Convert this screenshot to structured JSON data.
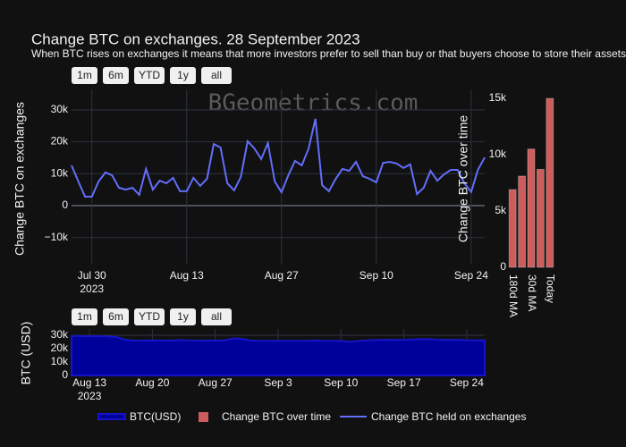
{
  "title": "Change BTC on exchanges. 28 September 2023",
  "subtitle": "When BTC rises on exchanges it means that more investors prefer to sell than buy or that buyers choose to store their assets o",
  "watermark": "BGeometrics.com",
  "range_buttons": [
    "1m",
    "6m",
    "YTD",
    "1y",
    "all"
  ],
  "chart_data": [
    {
      "type": "line",
      "y_label": "Change BTC on exchanges",
      "grid": true,
      "x": [
        "2023-07-27",
        "2023-07-28",
        "2023-07-29",
        "2023-07-30",
        "2023-07-31",
        "2023-08-01",
        "2023-08-02",
        "2023-08-03",
        "2023-08-04",
        "2023-08-05",
        "2023-08-06",
        "2023-08-07",
        "2023-08-08",
        "2023-08-09",
        "2023-08-10",
        "2023-08-11",
        "2023-08-12",
        "2023-08-13",
        "2023-08-14",
        "2023-08-15",
        "2023-08-16",
        "2023-08-17",
        "2023-08-18",
        "2023-08-19",
        "2023-08-20",
        "2023-08-21",
        "2023-08-22",
        "2023-08-23",
        "2023-08-24",
        "2023-08-25",
        "2023-08-26",
        "2023-08-27",
        "2023-08-28",
        "2023-08-29",
        "2023-08-30",
        "2023-08-31",
        "2023-09-01",
        "2023-09-02",
        "2023-09-03",
        "2023-09-04",
        "2023-09-05",
        "2023-09-06",
        "2023-09-07",
        "2023-09-08",
        "2023-09-09",
        "2023-09-10",
        "2023-09-11",
        "2023-09-12",
        "2023-09-13",
        "2023-09-14",
        "2023-09-15",
        "2023-09-16",
        "2023-09-17",
        "2023-09-18",
        "2023-09-19",
        "2023-09-20",
        "2023-09-21",
        "2023-09-22",
        "2023-09-23",
        "2023-09-24",
        "2023-09-25",
        "2023-09-26"
      ],
      "series": [
        {
          "name": "Change BTC held on exchanges",
          "color": "#636efa",
          "values": [
            12600,
            7600,
            2800,
            2800,
            7600,
            10400,
            9500,
            5600,
            5000,
            5600,
            3400,
            11500,
            5000,
            7800,
            7000,
            8700,
            4500,
            4500,
            8700,
            6200,
            8400,
            19300,
            18200,
            7000,
            4800,
            9000,
            20200,
            17900,
            14600,
            19600,
            7600,
            4200,
            9500,
            14000,
            12600,
            17900,
            27200,
            6400,
            4500,
            8400,
            11500,
            10900,
            13700,
            9200,
            8400,
            7300,
            13400,
            13700,
            13200,
            11800,
            12900,
            3600,
            5600,
            10900,
            7800,
            9800,
            11200,
            11200,
            7000,
            4300,
            11200,
            15100
          ]
        }
      ],
      "xlim": [
        "2023-07-27",
        "2023-09-26"
      ],
      "xticks": [
        {
          "value": "2023-07-30",
          "label": "Jul 30"
        },
        {
          "value": "2023-08-13",
          "label": "Aug 13"
        },
        {
          "value": "2023-08-27",
          "label": "Aug 27"
        },
        {
          "value": "2023-09-10",
          "label": "Sep 10"
        },
        {
          "value": "2023-09-24",
          "label": "Sep 24"
        }
      ],
      "x_year_label": "2023",
      "ylim": [
        -18200,
        36400
      ],
      "yticks": [
        {
          "value": -10000,
          "label": "−10k"
        },
        0,
        {
          "value": 10000,
          "label": "10k"
        },
        {
          "value": 20000,
          "label": "20k"
        },
        {
          "value": 30000,
          "label": "30k"
        }
      ]
    },
    {
      "type": "bar",
      "y_label": "Change BTC over time",
      "color": "#cd5c5c",
      "series": [
        {
          "name": "Change BTC over time",
          "color": "#cd5c5c",
          "values": [
            6900,
            8100,
            10500,
            8700,
            15000
          ]
        }
      ],
      "categories": [
        "180d MA",
        null,
        "30d MA",
        null,
        "Today"
      ],
      "ylim": [
        0,
        15800
      ],
      "yticks": [
        0,
        {
          "value": 5000,
          "label": "5k"
        },
        {
          "value": 10000,
          "label": "10k"
        },
        {
          "value": 15000,
          "label": "15k"
        }
      ]
    },
    {
      "type": "area",
      "y_label": "BTC (USD)",
      "grid": true,
      "x": [
        "2023-08-11",
        "2023-08-12",
        "2023-08-13",
        "2023-08-14",
        "2023-08-15",
        "2023-08-16",
        "2023-08-17",
        "2023-08-18",
        "2023-08-19",
        "2023-08-20",
        "2023-08-21",
        "2023-08-22",
        "2023-08-23",
        "2023-08-24",
        "2023-08-25",
        "2023-08-26",
        "2023-08-27",
        "2023-08-28",
        "2023-08-29",
        "2023-08-30",
        "2023-08-31",
        "2023-09-01",
        "2023-09-02",
        "2023-09-03",
        "2023-09-04",
        "2023-09-05",
        "2023-09-06",
        "2023-09-07",
        "2023-09-08",
        "2023-09-09",
        "2023-09-10",
        "2023-09-11",
        "2023-09-12",
        "2023-09-13",
        "2023-09-14",
        "2023-09-15",
        "2023-09-16",
        "2023-09-17",
        "2023-09-18",
        "2023-09-19",
        "2023-09-20",
        "2023-09-21",
        "2023-09-22",
        "2023-09-23",
        "2023-09-24",
        "2023-09-25",
        "2023-09-26"
      ],
      "series": [
        {
          "name": "BTC(USD)",
          "color": "#1414c8",
          "fill": "#00009a",
          "values": [
            29400,
            29400,
            29300,
            29400,
            29200,
            28700,
            26600,
            26000,
            26100,
            26200,
            26100,
            26000,
            26400,
            26200,
            26000,
            26000,
            26100,
            26100,
            27700,
            27300,
            26000,
            25800,
            25900,
            25900,
            25800,
            25800,
            25800,
            26200,
            25900,
            25900,
            25800,
            25100,
            25800,
            26200,
            26500,
            26600,
            26600,
            26500,
            26800,
            27200,
            27100,
            26600,
            26600,
            26600,
            26300,
            26200,
            26300
          ]
        }
      ],
      "xlim": [
        "2023-08-11",
        "2023-09-26"
      ],
      "xticks": [
        {
          "value": "2023-08-13",
          "label": "Aug 13"
        },
        {
          "value": "2023-08-20",
          "label": "Aug 20"
        },
        {
          "value": "2023-08-27",
          "label": "Aug 27"
        },
        {
          "value": "2023-09-03",
          "label": "Sep 3"
        },
        {
          "value": "2023-09-10",
          "label": "Sep 10"
        },
        {
          "value": "2023-09-17",
          "label": "Sep 17"
        },
        {
          "value": "2023-09-24",
          "label": "Sep 24"
        }
      ],
      "x_year_label": "2023",
      "ylim": [
        0,
        34700
      ],
      "yticks": [
        0,
        {
          "value": 10000,
          "label": "10k"
        },
        {
          "value": 20000,
          "label": "20k"
        },
        {
          "value": 30000,
          "label": "30k"
        }
      ]
    }
  ]
}
